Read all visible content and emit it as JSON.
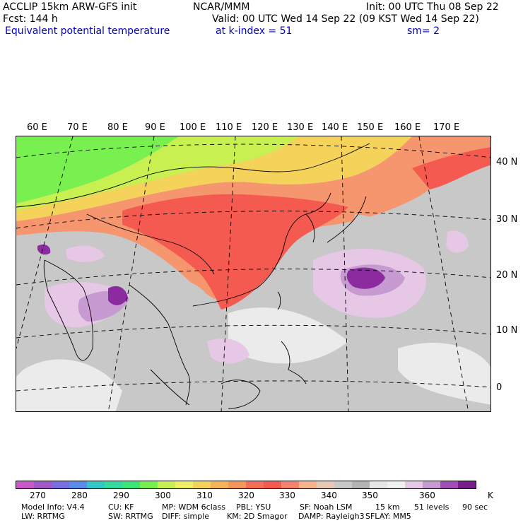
{
  "header": {
    "model": "ACCLIP 15km ARW-GFS init",
    "forecast": "Fcst:  144 h",
    "field": "Equivalent potential temperature",
    "org": "NCAR/MMM",
    "init": "Init: 00 UTC Thu 08 Sep 22",
    "valid": "Valid: 00 UTC Wed 14 Sep 22 (09 KST Wed 14 Sep 22)",
    "level": "at k-index =  51",
    "smooth": "sm= 2"
  },
  "lon_labels": [
    "60 E",
    "70 E",
    "80 E",
    "90 E",
    "100 E",
    "110 E",
    "120 E",
    "130 E",
    "140 E",
    "150 E",
    "160 E",
    "170 E"
  ],
  "lat_labels": [
    "40 N",
    "30 N",
    "20 N",
    "10 N",
    "0"
  ],
  "colorbar": {
    "colors": [
      "#c85ac8",
      "#a05ac8",
      "#7a6ee0",
      "#5a8ce8",
      "#32c8c8",
      "#32dca0",
      "#3ce678",
      "#78f050",
      "#c8f050",
      "#f0f064",
      "#f5d25a",
      "#f5b45a",
      "#f5965a",
      "#f56e5a",
      "#f55a50",
      "#f5826e",
      "#f5b48c",
      "#e6c8b4",
      "#c8c8c8",
      "#b4b4b4",
      "#e6e6e6",
      "#f0f0f0",
      "#e6c8e6",
      "#c89ad2",
      "#a050b4",
      "#781e8c"
    ],
    "labels": [
      "270",
      "280",
      "290",
      "300",
      "310",
      "320",
      "330",
      "340",
      "350",
      "360",
      "K"
    ],
    "regions": {
      "cold": "#78f050",
      "cool": "#c8f050",
      "mild": "#f5d25a",
      "warm": "#f5966e",
      "hot": "#f55a50",
      "neutral": "#c8c8c8",
      "pale": "#ebebeb",
      "humid": "#e6c8e6",
      "veryhumid": "#c89ad2",
      "extreme": "#8c2aa0"
    }
  },
  "model_info": {
    "line1": [
      "Model Info: V4.4",
      "CU: KF",
      "MP: WDM 6class",
      "PBL: YSU",
      "SF: Noah LSM",
      "15 km",
      "51 levels",
      "90 sec"
    ],
    "line2": [
      "LW: RRTMG",
      "SW: RRTMG",
      "DIFF: simple",
      "KM: 2D Smagor",
      "DAMP: Rayleigh3",
      "SFLAY: MM5"
    ]
  }
}
